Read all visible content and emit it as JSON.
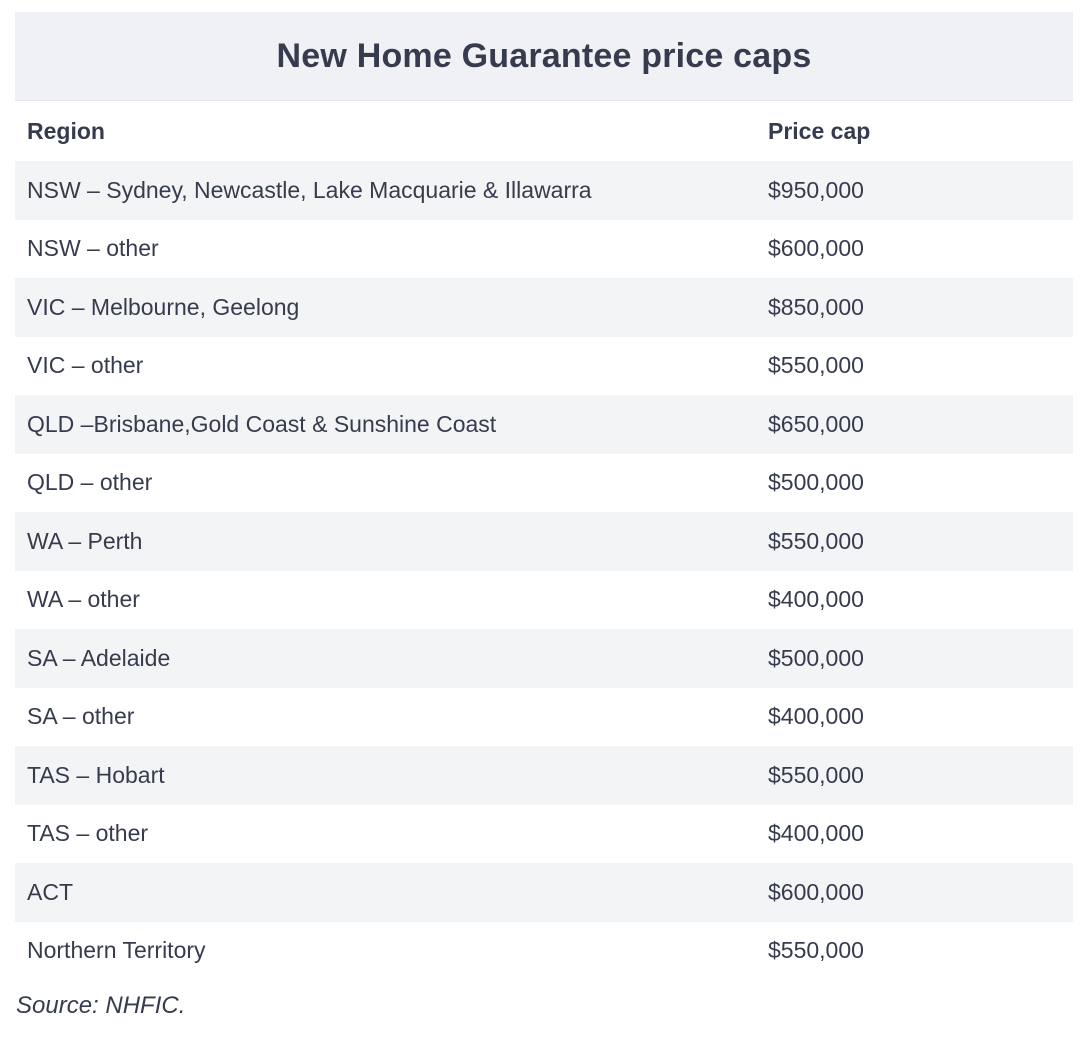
{
  "title": "New Home Guarantee price caps",
  "columns": {
    "region": "Region",
    "price_cap": "Price cap"
  },
  "rows": [
    {
      "region": "NSW – Sydney, Newcastle, Lake Macquarie & Illawarra",
      "price_cap": "$950,000"
    },
    {
      "region": "NSW – other",
      "price_cap": "$600,000"
    },
    {
      "region": "VIC – Melbourne, Geelong",
      "price_cap": "$850,000"
    },
    {
      "region": "VIC – other",
      "price_cap": "$550,000"
    },
    {
      "region": "QLD –Brisbane,Gold Coast & Sunshine Coast",
      "price_cap": "$650,000"
    },
    {
      "region": "QLD – other",
      "price_cap": "$500,000"
    },
    {
      "region": "WA – Perth",
      "price_cap": "$550,000"
    },
    {
      "region": "WA – other",
      "price_cap": "$400,000"
    },
    {
      "region": "SA – Adelaide",
      "price_cap": "$500,000"
    },
    {
      "region": "SA – other",
      "price_cap": "$400,000"
    },
    {
      "region": "TAS – Hobart",
      "price_cap": "$550,000"
    },
    {
      "region": "TAS – other",
      "price_cap": "$400,000"
    },
    {
      "region": "ACT",
      "price_cap": "$600,000"
    },
    {
      "region": "Northern Territory",
      "price_cap": "$550,000"
    }
  ],
  "source": "Source: NHFIC."
}
